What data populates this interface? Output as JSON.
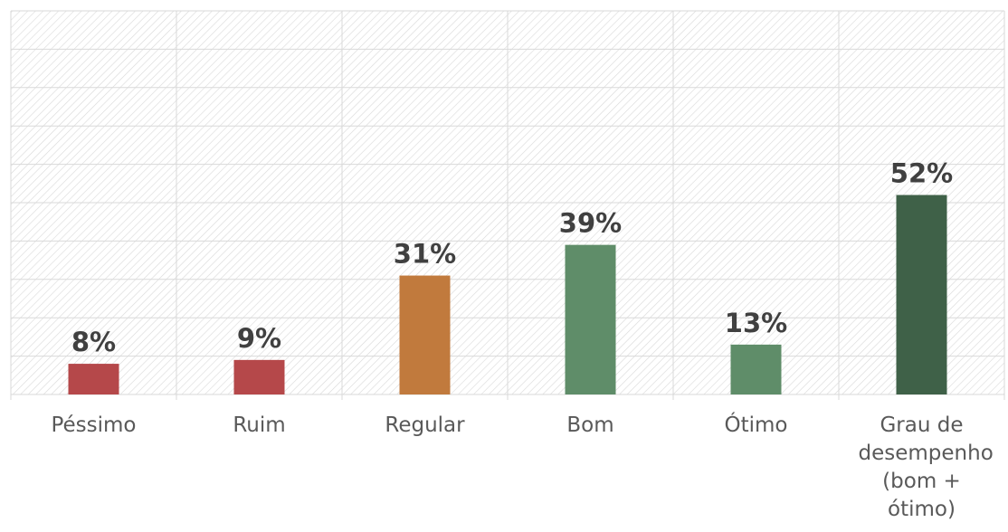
{
  "chart_data": {
    "type": "bar",
    "categories": [
      "Péssimo",
      "Ruim",
      "Regular",
      "Bom",
      "Ótimo",
      "Grau de desempenho (bom + ótimo)"
    ],
    "values": [
      8,
      9,
      31,
      39,
      13,
      52
    ],
    "value_labels": [
      "8%",
      "9%",
      "31%",
      "39%",
      "13%",
      "52%"
    ],
    "colors": [
      "#b5484a",
      "#b5484a",
      "#c17a3d",
      "#5f8d69",
      "#5f8d69",
      "#3f6148"
    ],
    "ylim": [
      0,
      100
    ],
    "yticks": [
      0,
      10,
      20,
      30,
      40,
      50,
      60,
      70,
      80,
      90,
      100
    ],
    "grid": true
  }
}
